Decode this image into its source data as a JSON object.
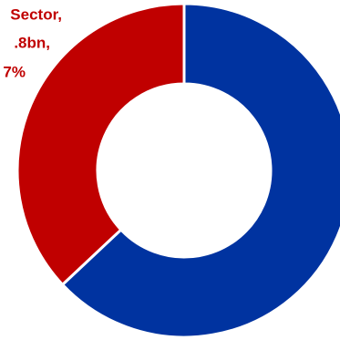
{
  "chart_data": {
    "type": "donut",
    "categories": [
      null,
      null
    ],
    "values": [
      63,
      37
    ],
    "colors": [
      "#0033a0",
      "#c00000"
    ],
    "annotations": [
      "Sector,",
      ".8bn,",
      "7%"
    ]
  }
}
